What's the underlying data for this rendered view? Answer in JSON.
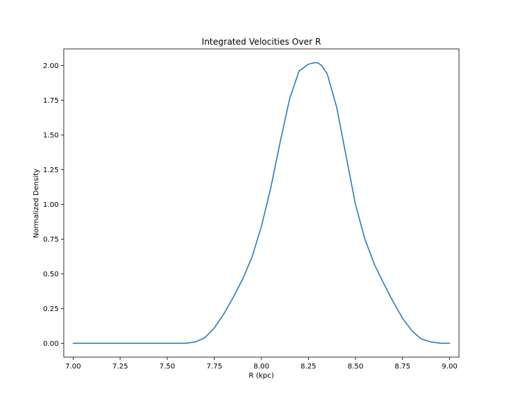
{
  "chart_data": {
    "type": "line",
    "title": "Integrated Velocities Over R",
    "xlabel": "R (kpc)",
    "ylabel": "Normalized Density",
    "xlim": [
      6.95,
      9.05
    ],
    "ylim": [
      -0.1,
      2.12
    ],
    "xticks": [
      7.0,
      7.25,
      7.5,
      7.75,
      8.0,
      8.25,
      8.5,
      8.75,
      9.0
    ],
    "xtick_labels": [
      "7.00",
      "7.25",
      "7.50",
      "7.75",
      "8.00",
      "8.25",
      "8.50",
      "8.75",
      "9.00"
    ],
    "yticks": [
      0.0,
      0.25,
      0.5,
      0.75,
      1.0,
      1.25,
      1.5,
      1.75,
      2.0
    ],
    "ytick_labels": [
      "0.00",
      "0.25",
      "0.50",
      "0.75",
      "1.00",
      "1.25",
      "1.50",
      "1.75",
      "2.00"
    ],
    "grid": false,
    "series": [
      {
        "color": "#1f77b4",
        "x": [
          7.0,
          7.1,
          7.2,
          7.3,
          7.4,
          7.5,
          7.6,
          7.65,
          7.7,
          7.75,
          7.8,
          7.85,
          7.9,
          7.95,
          8.0,
          8.05,
          8.1,
          8.15,
          8.2,
          8.25,
          8.28,
          8.3,
          8.32,
          8.35,
          8.4,
          8.45,
          8.5,
          8.55,
          8.6,
          8.65,
          8.7,
          8.75,
          8.8,
          8.85,
          8.9,
          8.95,
          9.0
        ],
        "y": [
          0.0,
          0.0,
          0.0,
          0.0,
          0.0,
          0.0,
          0.0,
          0.01,
          0.04,
          0.11,
          0.21,
          0.33,
          0.46,
          0.62,
          0.84,
          1.12,
          1.45,
          1.76,
          1.96,
          2.01,
          2.02,
          2.02,
          2.0,
          1.94,
          1.7,
          1.35,
          1.0,
          0.75,
          0.57,
          0.43,
          0.3,
          0.18,
          0.09,
          0.03,
          0.01,
          0.0,
          0.0
        ]
      }
    ]
  }
}
